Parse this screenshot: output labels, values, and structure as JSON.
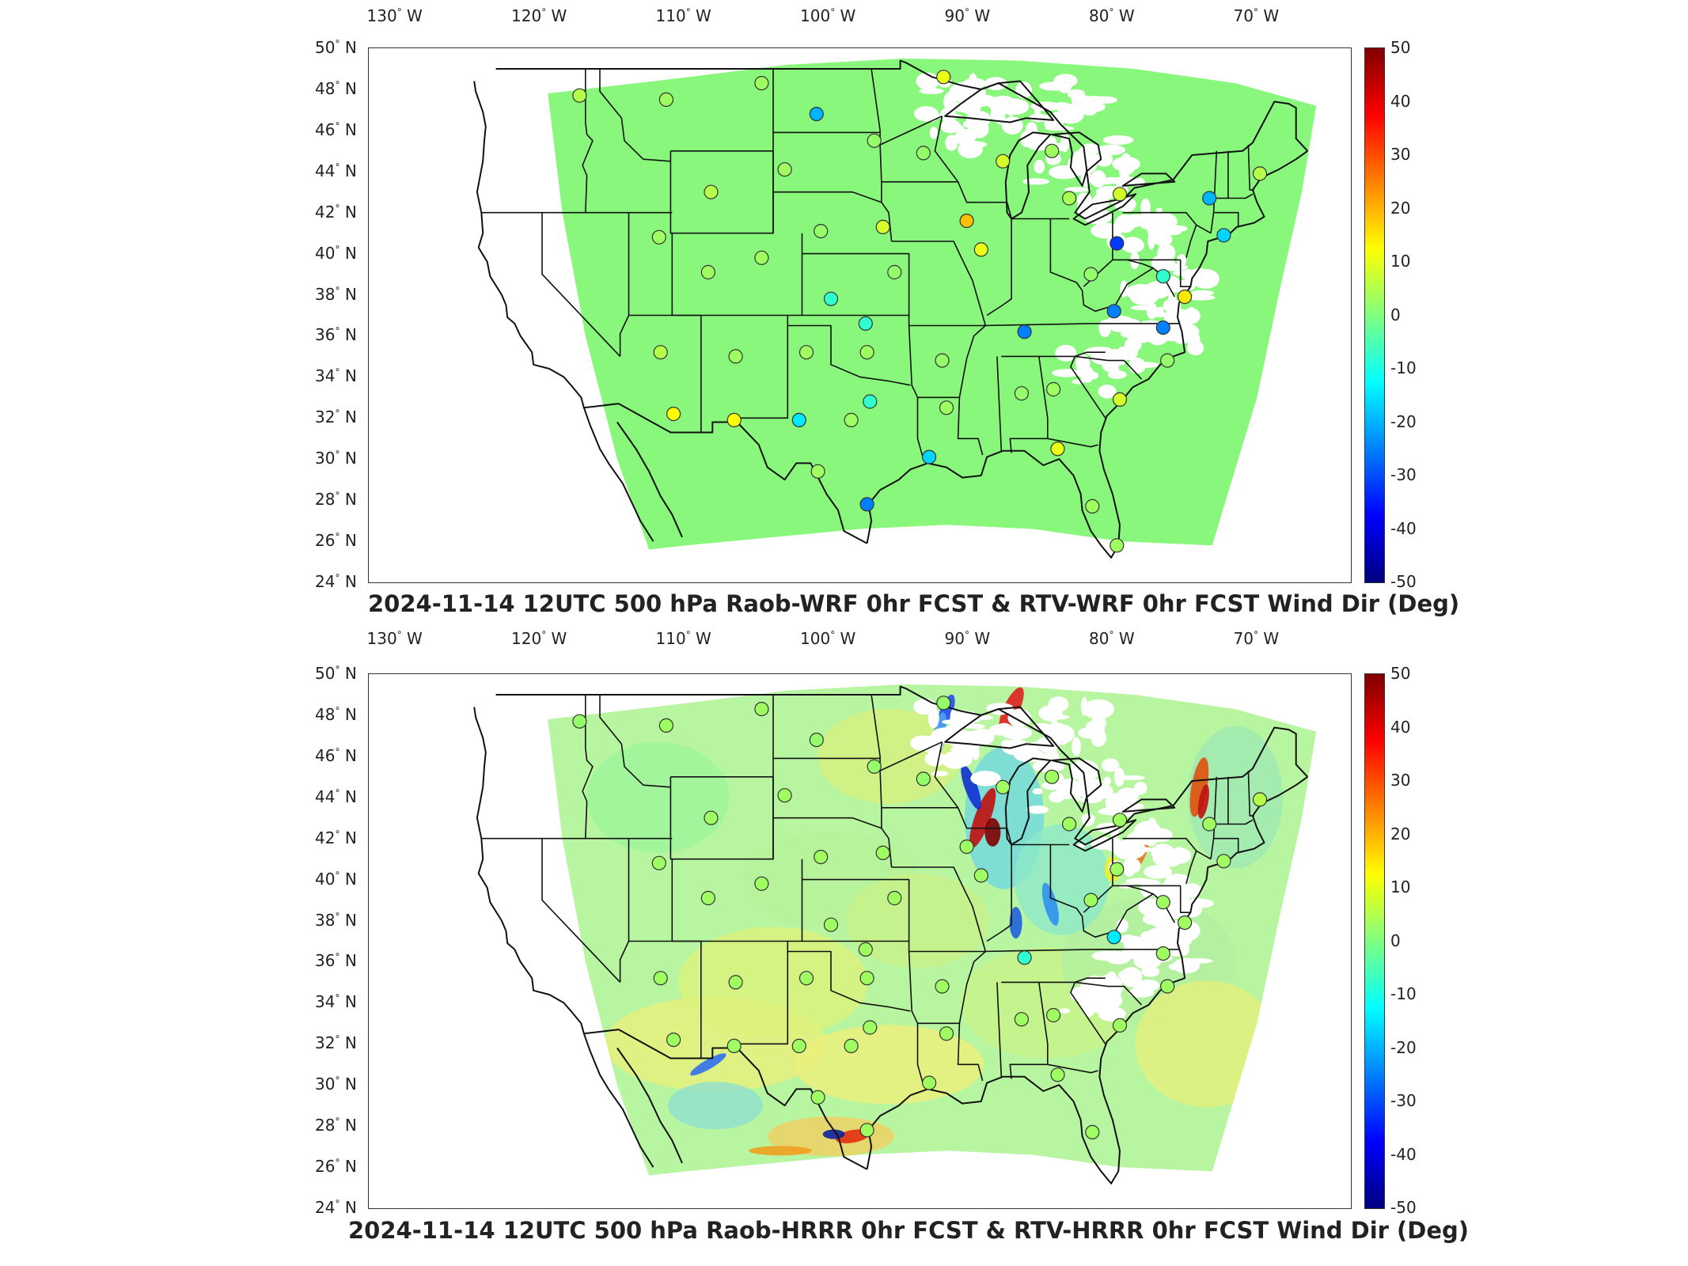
{
  "panels": [
    {
      "title": "2024-11-14 12UTC 500 hPa Raob-WRF 0hr FCST & RTV-WRF 0hr FCST Wind Dir (Deg)",
      "field_style": "uniform"
    },
    {
      "title": "2024-11-14 12UTC 500 hPa Raob-HRRR 0hr FCST & RTV-HRRR 0hr FCST Wind Dir (Deg)",
      "field_style": "varied"
    }
  ],
  "lon_ticks": [
    {
      "deg": "130",
      "hemi": "W"
    },
    {
      "deg": "120",
      "hemi": "W"
    },
    {
      "deg": "110",
      "hemi": "W"
    },
    {
      "deg": "100",
      "hemi": "W"
    },
    {
      "deg": "90",
      "hemi": "W"
    },
    {
      "deg": "80",
      "hemi": "W"
    },
    {
      "deg": "70",
      "hemi": "W"
    }
  ],
  "lat_ticks": [
    {
      "deg": "50",
      "hemi": "N"
    },
    {
      "deg": "48",
      "hemi": "N"
    },
    {
      "deg": "46",
      "hemi": "N"
    },
    {
      "deg": "44",
      "hemi": "N"
    },
    {
      "deg": "42",
      "hemi": "N"
    },
    {
      "deg": "40",
      "hemi": "N"
    },
    {
      "deg": "38",
      "hemi": "N"
    },
    {
      "deg": "36",
      "hemi": "N"
    },
    {
      "deg": "34",
      "hemi": "N"
    },
    {
      "deg": "32",
      "hemi": "N"
    },
    {
      "deg": "30",
      "hemi": "N"
    },
    {
      "deg": "28",
      "hemi": "N"
    },
    {
      "deg": "26",
      "hemi": "N"
    },
    {
      "deg": "24",
      "hemi": "N"
    }
  ],
  "colorbar": {
    "labels": [
      "50",
      "40",
      "30",
      "20",
      "10",
      "0",
      "-10",
      "-20",
      "-30",
      "-40",
      "-50"
    ],
    "colors": [
      "#800000",
      "#ff0000",
      "#ff8000",
      "#ffff00",
      "#80ff80",
      "#00ffff",
      "#0080ff",
      "#0000ff",
      "#000080"
    ],
    "min": -50,
    "max": 50
  },
  "stations_top": [
    {
      "lon": -117.4,
      "lat": 47.7,
      "v": 5
    },
    {
      "lon": -111.4,
      "lat": 47.5,
      "v": 3
    },
    {
      "lon": -101.0,
      "lat": 46.8,
      "v": -15
    },
    {
      "lon": -97.0,
      "lat": 45.5,
      "v": 2
    },
    {
      "lon": -93.6,
      "lat": 44.9,
      "v": 2
    },
    {
      "lon": -92.2,
      "lat": 48.6,
      "v": 10
    },
    {
      "lon": -88.1,
      "lat": 44.5,
      "v": 8
    },
    {
      "lon": -84.7,
      "lat": 45.0,
      "v": 3
    },
    {
      "lon": -83.5,
      "lat": 42.7,
      "v": 4
    },
    {
      "lon": -80.0,
      "lat": 42.9,
      "v": 8
    },
    {
      "lon": -73.8,
      "lat": 42.7,
      "v": -15
    },
    {
      "lon": -70.3,
      "lat": 43.9,
      "v": 5
    },
    {
      "lon": -72.8,
      "lat": 40.9,
      "v": -12
    },
    {
      "lon": -77.0,
      "lat": 38.9,
      "v": -5
    },
    {
      "lon": -80.2,
      "lat": 40.5,
      "v": -30
    },
    {
      "lon": -82.0,
      "lat": 39.0,
      "v": 2
    },
    {
      "lon": -75.5,
      "lat": 37.9,
      "v": 15
    },
    {
      "lon": -80.4,
      "lat": 37.2,
      "v": -20
    },
    {
      "lon": -77.0,
      "lat": 36.4,
      "v": -20
    },
    {
      "lon": -76.7,
      "lat": 34.8,
      "v": 2
    },
    {
      "lon": -80.0,
      "lat": 32.9,
      "v": 8
    },
    {
      "lon": -84.6,
      "lat": 33.4,
      "v": 3
    },
    {
      "lon": -86.8,
      "lat": 33.2,
      "v": 2
    },
    {
      "lon": -84.3,
      "lat": 30.5,
      "v": 10
    },
    {
      "lon": -81.9,
      "lat": 27.7,
      "v": 3
    },
    {
      "lon": -86.6,
      "lat": 36.2,
      "v": -20
    },
    {
      "lon": -89.6,
      "lat": 40.2,
      "v": 10
    },
    {
      "lon": -90.6,
      "lat": 41.6,
      "v": 20
    },
    {
      "lon": -92.3,
      "lat": 34.8,
      "v": 2
    },
    {
      "lon": -92.0,
      "lat": 32.5,
      "v": 3
    },
    {
      "lon": -93.2,
      "lat": 30.1,
      "v": -12
    },
    {
      "lon": -97.3,
      "lat": 32.8,
      "v": -5
    },
    {
      "lon": -97.5,
      "lat": 35.2,
      "v": 3
    },
    {
      "lon": -97.6,
      "lat": 36.6,
      "v": -5
    },
    {
      "lon": -98.6,
      "lat": 31.9,
      "v": 3
    },
    {
      "lon": -97.5,
      "lat": 27.8,
      "v": -20
    },
    {
      "lon": -100.9,
      "lat": 29.4,
      "v": 3
    },
    {
      "lon": -102.2,
      "lat": 31.9,
      "v": -10
    },
    {
      "lon": -101.7,
      "lat": 35.2,
      "v": 3
    },
    {
      "lon": -100.0,
      "lat": 37.8,
      "v": -5
    },
    {
      "lon": -95.6,
      "lat": 39.1,
      "v": 2
    },
    {
      "lon": -96.4,
      "lat": 41.3,
      "v": 8
    },
    {
      "lon": -100.7,
      "lat": 41.1,
      "v": 2
    },
    {
      "lon": -104.8,
      "lat": 39.8,
      "v": 3
    },
    {
      "lon": -108.5,
      "lat": 39.1,
      "v": 3
    },
    {
      "lon": -106.6,
      "lat": 35.0,
      "v": 3
    },
    {
      "lon": -111.8,
      "lat": 35.2,
      "v": 5
    },
    {
      "lon": -110.9,
      "lat": 32.2,
      "v": 12
    },
    {
      "lon": -106.7,
      "lat": 31.9,
      "v": 12
    },
    {
      "lon": -111.9,
      "lat": 40.8,
      "v": 3
    },
    {
      "lon": -108.3,
      "lat": 43.0,
      "v": 5
    },
    {
      "lon": -103.2,
      "lat": 44.1,
      "v": 3
    },
    {
      "lon": -104.8,
      "lat": 48.3,
      "v": 3
    },
    {
      "lon": -80.2,
      "lat": 25.8,
      "v": 3
    }
  ],
  "stations_bottom": [
    {
      "lon": -117.4,
      "lat": 47.7,
      "v": 2
    },
    {
      "lon": -111.4,
      "lat": 47.5,
      "v": 3
    },
    {
      "lon": -101.0,
      "lat": 46.8,
      "v": 2
    },
    {
      "lon": -97.0,
      "lat": 45.5,
      "v": 2
    },
    {
      "lon": -93.6,
      "lat": 44.9,
      "v": 2
    },
    {
      "lon": -92.2,
      "lat": 48.6,
      "v": 2
    },
    {
      "lon": -88.1,
      "lat": 44.5,
      "v": 3
    },
    {
      "lon": -84.7,
      "lat": 45.0,
      "v": 3
    },
    {
      "lon": -83.5,
      "lat": 42.7,
      "v": 3
    },
    {
      "lon": -80.0,
      "lat": 42.9,
      "v": 3
    },
    {
      "lon": -73.8,
      "lat": 42.7,
      "v": 3
    },
    {
      "lon": -70.3,
      "lat": 43.9,
      "v": 5
    },
    {
      "lon": -72.8,
      "lat": 40.9,
      "v": 3
    },
    {
      "lon": -77.0,
      "lat": 38.9,
      "v": 3
    },
    {
      "lon": -80.2,
      "lat": 40.5,
      "v": 3
    },
    {
      "lon": -82.0,
      "lat": 39.0,
      "v": 3
    },
    {
      "lon": -75.5,
      "lat": 37.9,
      "v": 3
    },
    {
      "lon": -80.4,
      "lat": 37.2,
      "v": -10
    },
    {
      "lon": -77.0,
      "lat": 36.4,
      "v": 3
    },
    {
      "lon": -76.7,
      "lat": 34.8,
      "v": 3
    },
    {
      "lon": -80.0,
      "lat": 32.9,
      "v": 3
    },
    {
      "lon": -84.6,
      "lat": 33.4,
      "v": 3
    },
    {
      "lon": -86.8,
      "lat": 33.2,
      "v": 3
    },
    {
      "lon": -84.3,
      "lat": 30.5,
      "v": 3
    },
    {
      "lon": -81.9,
      "lat": 27.7,
      "v": 3
    },
    {
      "lon": -86.6,
      "lat": 36.2,
      "v": -5
    },
    {
      "lon": -89.6,
      "lat": 40.2,
      "v": 3
    },
    {
      "lon": -90.6,
      "lat": 41.6,
      "v": 3
    },
    {
      "lon": -92.3,
      "lat": 34.8,
      "v": 3
    },
    {
      "lon": -92.0,
      "lat": 32.5,
      "v": 3
    },
    {
      "lon": -93.2,
      "lat": 30.1,
      "v": 3
    },
    {
      "lon": -97.3,
      "lat": 32.8,
      "v": 3
    },
    {
      "lon": -97.5,
      "lat": 35.2,
      "v": 3
    },
    {
      "lon": -97.6,
      "lat": 36.6,
      "v": 3
    },
    {
      "lon": -98.6,
      "lat": 31.9,
      "v": 3
    },
    {
      "lon": -97.5,
      "lat": 27.8,
      "v": 3
    },
    {
      "lon": -100.9,
      "lat": 29.4,
      "v": 3
    },
    {
      "lon": -102.2,
      "lat": 31.9,
      "v": 3
    },
    {
      "lon": -101.7,
      "lat": 35.2,
      "v": 3
    },
    {
      "lon": -100.0,
      "lat": 37.8,
      "v": 3
    },
    {
      "lon": -95.6,
      "lat": 39.1,
      "v": 3
    },
    {
      "lon": -96.4,
      "lat": 41.3,
      "v": 3
    },
    {
      "lon": -100.7,
      "lat": 41.1,
      "v": 3
    },
    {
      "lon": -104.8,
      "lat": 39.8,
      "v": 3
    },
    {
      "lon": -108.5,
      "lat": 39.1,
      "v": 3
    },
    {
      "lon": -106.6,
      "lat": 35.0,
      "v": 3
    },
    {
      "lon": -111.8,
      "lat": 35.2,
      "v": 3
    },
    {
      "lon": -110.9,
      "lat": 32.2,
      "v": 3
    },
    {
      "lon": -106.7,
      "lat": 31.9,
      "v": 3
    },
    {
      "lon": -111.9,
      "lat": 40.8,
      "v": 3
    },
    {
      "lon": -108.3,
      "lat": 43.0,
      "v": 3
    },
    {
      "lon": -103.2,
      "lat": 44.1,
      "v": 3
    },
    {
      "lon": -104.8,
      "lat": 48.3,
      "v": 3
    }
  ]
}
